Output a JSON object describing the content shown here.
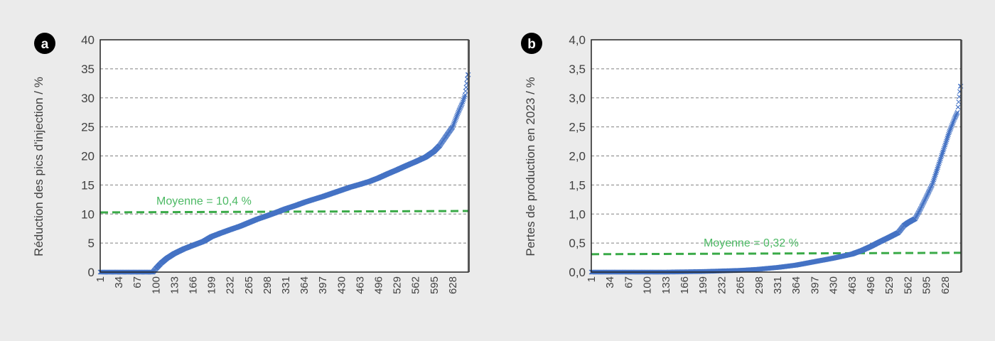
{
  "colors": {
    "background": "#ebebeb",
    "plot_bg": "#ffffff",
    "series": "#4472c4",
    "mean_line": "#3aaa48",
    "mean_text": "#4cb964",
    "grid": "#808080",
    "text": "#404040"
  },
  "panels": [
    {
      "badge": "a",
      "ylabel": "Réduction des pics d'injection / %",
      "mean_label": "Moyenne = 10,4 %"
    },
    {
      "badge": "b",
      "ylabel": "Pertes de production en 2023 / %",
      "mean_label": "Moyenne = 0,32 %"
    }
  ],
  "chart_data": [
    {
      "type": "scatter",
      "title": "",
      "badge": "a",
      "xlabel": "",
      "ylabel": "Réduction des pics d'injection / %",
      "x_ticks": [
        "1",
        "34",
        "67",
        "100",
        "133",
        "166",
        "199",
        "232",
        "265",
        "298",
        "331",
        "364",
        "397",
        "430",
        "463",
        "496",
        "529",
        "562",
        "595",
        "628"
      ],
      "y_ticks": [
        "0",
        "5",
        "10",
        "15",
        "20",
        "25",
        "30",
        "35",
        "40"
      ],
      "ylim": [
        0,
        40
      ],
      "xlim": [
        1,
        656
      ],
      "grid": "horizontal dashed",
      "marker": "x",
      "mean": 10.4,
      "mean_label": "Moyenne = 10,4 %",
      "series": [
        {
          "name": "Réduction des pics d'injection",
          "points": [
            [
              1,
              0
            ],
            [
              34,
              0
            ],
            [
              67,
              0
            ],
            [
              95,
              0
            ],
            [
              100,
              0.6
            ],
            [
              110,
              1.6
            ],
            [
              120,
              2.4
            ],
            [
              133,
              3.2
            ],
            [
              150,
              4.0
            ],
            [
              166,
              4.6
            ],
            [
              185,
              5.3
            ],
            [
              199,
              6.1
            ],
            [
              215,
              6.7
            ],
            [
              232,
              7.3
            ],
            [
              250,
              7.9
            ],
            [
              265,
              8.5
            ],
            [
              280,
              9.1
            ],
            [
              298,
              9.7
            ],
            [
              315,
              10.3
            ],
            [
              331,
              10.9
            ],
            [
              350,
              11.5
            ],
            [
              364,
              12.0
            ],
            [
              380,
              12.5
            ],
            [
              397,
              13.0
            ],
            [
              415,
              13.6
            ],
            [
              430,
              14.1
            ],
            [
              445,
              14.6
            ],
            [
              463,
              15.1
            ],
            [
              480,
              15.6
            ],
            [
              496,
              16.2
            ],
            [
              512,
              16.9
            ],
            [
              529,
              17.6
            ],
            [
              545,
              18.3
            ],
            [
              562,
              19.0
            ],
            [
              580,
              19.8
            ],
            [
              595,
              20.8
            ],
            [
              605,
              21.8
            ],
            [
              615,
              23.2
            ],
            [
              628,
              25.0
            ],
            [
              638,
              27.5
            ],
            [
              645,
              29.0
            ],
            [
              650,
              30.5
            ],
            [
              653,
              32.5
            ],
            [
              655,
              34.0
            ]
          ]
        }
      ]
    },
    {
      "type": "scatter",
      "title": "",
      "badge": "b",
      "xlabel": "",
      "ylabel": "Pertes de production en 2023 / %",
      "x_ticks": [
        "1",
        "34",
        "67",
        "100",
        "133",
        "166",
        "199",
        "232",
        "265",
        "298",
        "331",
        "364",
        "397",
        "430",
        "463",
        "496",
        "529",
        "562",
        "595",
        "628"
      ],
      "y_ticks": [
        "0,0",
        "0,5",
        "1,0",
        "1,5",
        "2,0",
        "2,5",
        "3,0",
        "3,5",
        "4,0"
      ],
      "ylim": [
        0,
        4.0
      ],
      "xlim": [
        1,
        656
      ],
      "grid": "horizontal dashed",
      "marker": "x",
      "mean": 0.32,
      "mean_label": "Moyenne = 0,32 %",
      "series": [
        {
          "name": "Pertes de production en 2023",
          "points": [
            [
              1,
              0
            ],
            [
              34,
              0
            ],
            [
              67,
              0
            ],
            [
              100,
              0.0
            ],
            [
              133,
              0.0
            ],
            [
              166,
              0.005
            ],
            [
              199,
              0.01
            ],
            [
              232,
              0.02
            ],
            [
              265,
              0.03
            ],
            [
              298,
              0.05
            ],
            [
              331,
              0.08
            ],
            [
              364,
              0.12
            ],
            [
              397,
              0.18
            ],
            [
              430,
              0.24
            ],
            [
              463,
              0.31
            ],
            [
              480,
              0.37
            ],
            [
              496,
              0.44
            ],
            [
              512,
              0.52
            ],
            [
              529,
              0.6
            ],
            [
              545,
              0.68
            ],
            [
              555,
              0.8
            ],
            [
              562,
              0.85
            ],
            [
              575,
              0.92
            ],
            [
              585,
              1.1
            ],
            [
              595,
              1.3
            ],
            [
              605,
              1.5
            ],
            [
              615,
              1.8
            ],
            [
              625,
              2.1
            ],
            [
              635,
              2.4
            ],
            [
              645,
              2.65
            ],
            [
              650,
              2.75
            ],
            [
              655,
              3.2
            ]
          ]
        }
      ]
    }
  ]
}
